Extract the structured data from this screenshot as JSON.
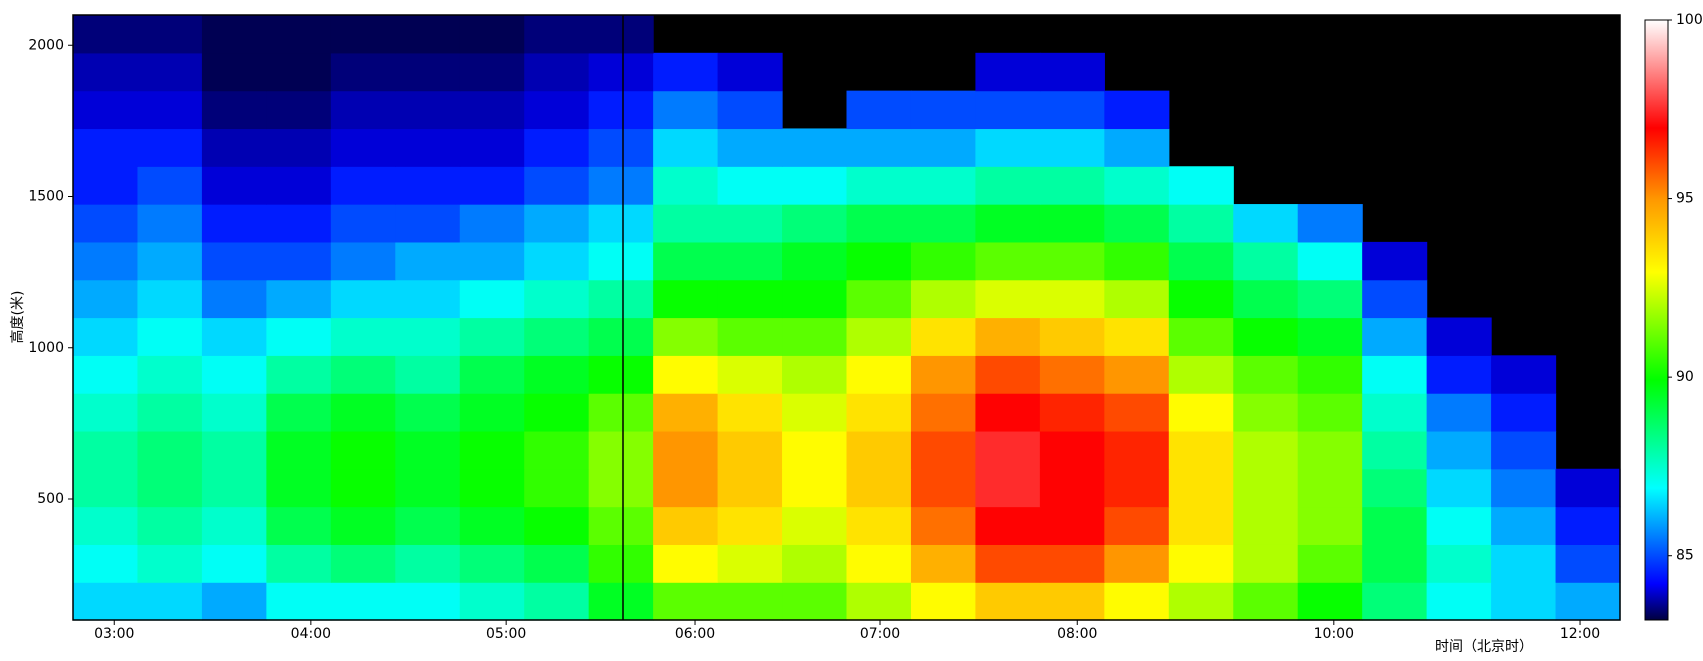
{
  "chart_data": {
    "type": "heatmap",
    "ylabel": "高度(米)",
    "xlabel": "时间（北京时）",
    "xlim": [
      0,
      24
    ],
    "xticks": [
      {
        "value": 0.64,
        "label": "03:00"
      },
      {
        "value": 3.69,
        "label": "04:00"
      },
      {
        "value": 6.72,
        "label": "05:00"
      },
      {
        "value": 9.65,
        "label": "06:00"
      },
      {
        "value": 12.52,
        "label": "07:00"
      },
      {
        "value": 15.58,
        "label": "08:00"
      },
      {
        "value": 19.56,
        "label": "10:00"
      },
      {
        "value": 23.38,
        "label": "12:00"
      }
    ],
    "ylim": [
      100,
      2100
    ],
    "yticks": [
      500,
      1000,
      1500,
      2000
    ],
    "clim": [
      83.2,
      100
    ],
    "colorbar_ticks": [
      85,
      90,
      95,
      100
    ],
    "background": "#000000",
    "colormap": [
      [
        0,
        "#000040"
      ],
      [
        0.06,
        "#0000ff"
      ],
      [
        0.22,
        "#00ffff"
      ],
      [
        0.4,
        "#00ff00"
      ],
      [
        0.58,
        "#ffff00"
      ],
      [
        0.7,
        "#ff9900"
      ],
      [
        0.82,
        "#ff0000"
      ],
      [
        1,
        "#ffffff"
      ]
    ],
    "values": [
      [
        86.5,
        86.5,
        86,
        87,
        87,
        87,
        87.5,
        88,
        89.5,
        91,
        91,
        91,
        92,
        93,
        94,
        94,
        93,
        92,
        91,
        90,
        88.5,
        87,
        86.5,
        86
      ],
      [
        87,
        87.5,
        87,
        88,
        88.5,
        88,
        88.5,
        89,
        90.5,
        93,
        92.5,
        92,
        93,
        94.5,
        96,
        96,
        95,
        93,
        92,
        91,
        89,
        87.5,
        86.5,
        85
      ],
      [
        87.5,
        88,
        87.5,
        89,
        89.5,
        89,
        89.5,
        90,
        91,
        94,
        93.5,
        92.5,
        93.5,
        95.5,
        97,
        97,
        96,
        93.5,
        92,
        91.5,
        89,
        87,
        86,
        84.5
      ],
      [
        88,
        88.5,
        88,
        89.5,
        90,
        89.5,
        90,
        90.5,
        91.5,
        95,
        94,
        93,
        94,
        96,
        97.5,
        97,
        96.5,
        93.5,
        92,
        91.5,
        88.5,
        86.5,
        85.5,
        84
      ],
      [
        88,
        88.5,
        88,
        89.5,
        90,
        89.5,
        90,
        90.5,
        91.5,
        95,
        94,
        93,
        94,
        96,
        97.5,
        97,
        96.5,
        93.5,
        92,
        91.5,
        88,
        86,
        85,
        null
      ],
      [
        87.5,
        88,
        87.5,
        89,
        89.5,
        89,
        89.5,
        90,
        91,
        94.5,
        93.5,
        92.5,
        93.5,
        95.5,
        97,
        96.5,
        96,
        93,
        91.5,
        91,
        87.5,
        85.5,
        84.5,
        null
      ],
      [
        87,
        87.5,
        87,
        88,
        88.5,
        88,
        89,
        89.5,
        90,
        93,
        92.5,
        92,
        93,
        95,
        96,
        95.5,
        95,
        92,
        91,
        90.5,
        87,
        84.5,
        84,
        null
      ],
      [
        86.5,
        87,
        86.5,
        87,
        87.5,
        87.5,
        88,
        88.5,
        89,
        91.5,
        91,
        91,
        92,
        93.5,
        94.5,
        94,
        93.5,
        91,
        90,
        89.5,
        86,
        84,
        null,
        null
      ],
      [
        86,
        86.5,
        85.5,
        86,
        86.5,
        86.5,
        87,
        87.5,
        88,
        90,
        90,
        90,
        91,
        92,
        92.5,
        92.5,
        92,
        90,
        89,
        88.5,
        85,
        null,
        null,
        null
      ],
      [
        85.5,
        86,
        85,
        85,
        85.5,
        86,
        86,
        86.5,
        87,
        89,
        89,
        89.5,
        90,
        90.5,
        91,
        91,
        90.5,
        89,
        88,
        87,
        84,
        null,
        null,
        null
      ],
      [
        85,
        85.5,
        84.5,
        84.5,
        85,
        85,
        85.5,
        86,
        86.5,
        88,
        88,
        88.5,
        89,
        89,
        89.5,
        89.5,
        89,
        88,
        86.5,
        85.5,
        null,
        null,
        null,
        null
      ],
      [
        84.5,
        85,
        84,
        84,
        84.5,
        84.5,
        84.5,
        85,
        85.5,
        87.5,
        87,
        87,
        87.5,
        87.5,
        88,
        88,
        87.5,
        87,
        null,
        null,
        null,
        null,
        null,
        null
      ],
      [
        84.5,
        84.5,
        83.8,
        83.8,
        84,
        84,
        84,
        84.5,
        85,
        86.5,
        86,
        86,
        86,
        86,
        86.5,
        86.5,
        86,
        null,
        null,
        null,
        null,
        null,
        null,
        null
      ],
      [
        84,
        84,
        83.5,
        83.5,
        83.8,
        83.8,
        83.8,
        84,
        84.5,
        85.5,
        85,
        null,
        85,
        85,
        85,
        85,
        84.5,
        null,
        null,
        null,
        null,
        null,
        null,
        null
      ],
      [
        83.8,
        83.8,
        83.3,
        83.3,
        83.5,
        83.5,
        83.5,
        83.8,
        84,
        84.5,
        84,
        null,
        null,
        null,
        84,
        84,
        null,
        null,
        null,
        null,
        null,
        null,
        null,
        null
      ],
      [
        83.5,
        83.5,
        83.3,
        83.3,
        83.3,
        83.3,
        83.3,
        83.5,
        83.5,
        null,
        null,
        null,
        null,
        null,
        null,
        null,
        null,
        null,
        null,
        null,
        null,
        null,
        null,
        null
      ]
    ]
  }
}
